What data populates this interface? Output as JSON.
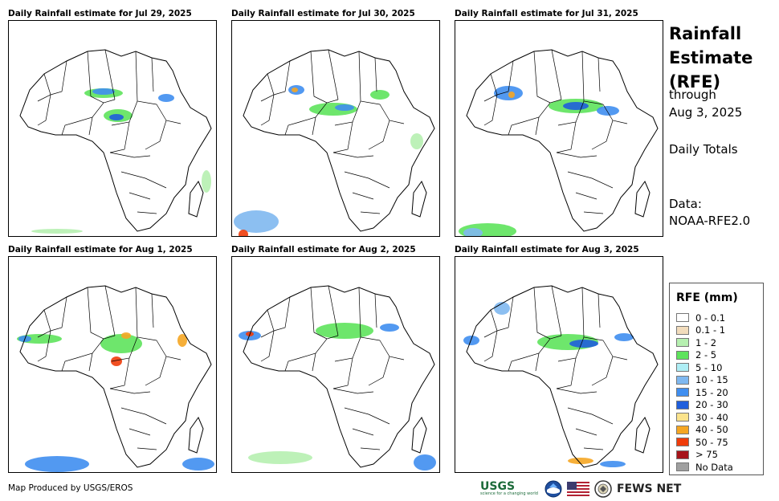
{
  "panels": [
    {
      "title": "Daily Rainfall estimate for Jul 29, 2025"
    },
    {
      "title": "Daily Rainfall estimate for Jul 30, 2025"
    },
    {
      "title": "Daily Rainfall estimate for Jul 31, 2025"
    },
    {
      "title": "Daily Rainfall estimate for Aug 1, 2025"
    },
    {
      "title": "Daily Rainfall estimate for Aug 2, 2025"
    },
    {
      "title": "Daily Rainfall estimate for Aug 3, 2025"
    }
  ],
  "sidebar": {
    "title_line1": "Rainfall",
    "title_line2": "Estimate",
    "title_line3": "(RFE)",
    "through": "through",
    "date": "Aug 3, 2025",
    "totals": "Daily Totals",
    "data_label": "Data:",
    "data_source": "NOAA-RFE2.0"
  },
  "legend": {
    "title": "RFE (mm)",
    "items": [
      {
        "label": "0 - 0.1",
        "color": "#ffffff"
      },
      {
        "label": "0.1 - 1",
        "color": "#f2dcbc"
      },
      {
        "label": "1 - 2",
        "color": "#b6f0b0"
      },
      {
        "label": "2 - 5",
        "color": "#5ee35c"
      },
      {
        "label": "5 - 10",
        "color": "#aeeef5"
      },
      {
        "label": "10 - 15",
        "color": "#7fb8f0"
      },
      {
        "label": "15 - 20",
        "color": "#3f8ef0"
      },
      {
        "label": "20 - 30",
        "color": "#1f5edc"
      },
      {
        "label": "30 - 40",
        "color": "#fbe38c"
      },
      {
        "label": "40 - 50",
        "color": "#f5a623"
      },
      {
        "label": "50 - 75",
        "color": "#f03c0a"
      },
      {
        "label": "> 75",
        "color": "#a6141a"
      },
      {
        "label": "No Data",
        "color": "#a0a0a0"
      }
    ]
  },
  "footer": {
    "credit": "Map Produced by USGS/EROS",
    "usgs": "USGS",
    "usgs_tagline": "science for a changing world",
    "fews": "FEWS NET"
  }
}
